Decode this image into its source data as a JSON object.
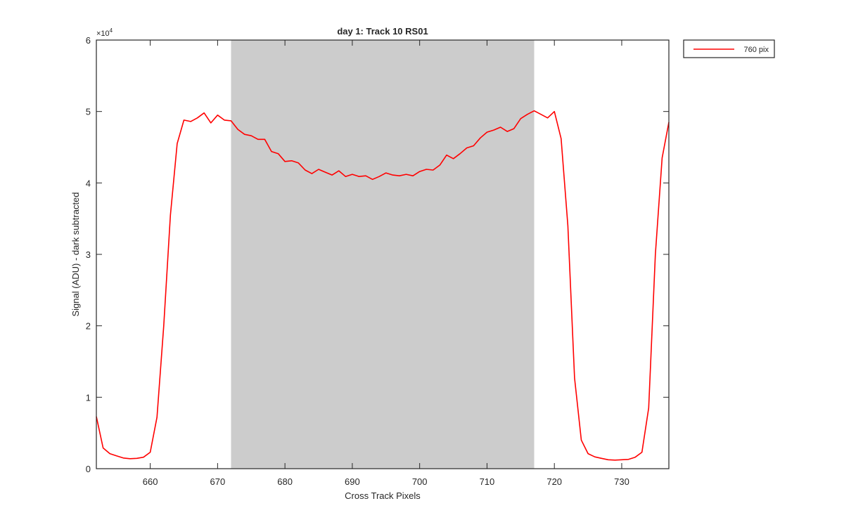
{
  "chart_data": {
    "type": "line",
    "title": "day 1: Track 10  RS01",
    "xlabel": "Cross Track Pixels",
    "ylabel": "Signal (ADU) - dark subtracted",
    "y_exponent_label": "×10",
    "y_exponent_power": "4",
    "xlim": [
      652,
      737
    ],
    "ylim": [
      0,
      60000
    ],
    "x_ticks": [
      660,
      670,
      680,
      690,
      700,
      710,
      720,
      730
    ],
    "y_ticks": [
      0,
      10000,
      20000,
      30000,
      40000,
      50000,
      60000
    ],
    "y_tick_labels": [
      "0",
      "1",
      "2",
      "3",
      "4",
      "5",
      "6"
    ],
    "grid": false,
    "legend_position": "outside top-right",
    "shaded_region": {
      "x_start": 672,
      "x_end": 717,
      "color": "#cccccc"
    },
    "series": [
      {
        "name": "760 pix",
        "color": "#ff0000",
        "x": [
          652,
          653,
          654,
          655,
          656,
          657,
          658,
          659,
          660,
          661,
          662,
          663,
          664,
          665,
          666,
          667,
          668,
          669,
          670,
          671,
          672,
          673,
          674,
          675,
          676,
          677,
          678,
          679,
          680,
          681,
          682,
          683,
          684,
          685,
          686,
          687,
          688,
          689,
          690,
          691,
          692,
          693,
          694,
          695,
          696,
          697,
          698,
          699,
          700,
          701,
          702,
          703,
          704,
          705,
          706,
          707,
          708,
          709,
          710,
          711,
          712,
          713,
          714,
          715,
          716,
          717,
          718,
          719,
          720,
          721,
          722,
          723,
          724,
          725,
          726,
          727,
          728,
          729,
          730,
          731,
          732,
          733,
          734,
          735,
          736,
          737
        ],
        "values": [
          7300,
          2900,
          2100,
          1800,
          1500,
          1400,
          1450,
          1600,
          2300,
          7200,
          20000,
          35500,
          45500,
          48800,
          48600,
          49100,
          49800,
          48400,
          49500,
          48800,
          48700,
          47500,
          46800,
          46600,
          46100,
          46100,
          44400,
          44100,
          43000,
          43100,
          42800,
          41800,
          41300,
          41900,
          41500,
          41100,
          41700,
          40900,
          41200,
          40900,
          41000,
          40500,
          40900,
          41400,
          41100,
          41000,
          41200,
          41000,
          41600,
          41900,
          41800,
          42500,
          43900,
          43400,
          44100,
          44900,
          45200,
          46300,
          47100,
          47400,
          47800,
          47200,
          47600,
          49000,
          49600,
          50100,
          49600,
          49100,
          50000,
          46200,
          34000,
          12700,
          4000,
          2100,
          1650,
          1450,
          1250,
          1200,
          1250,
          1300,
          1600,
          2300,
          8500,
          30000,
          43500,
          48500
        ]
      }
    ]
  }
}
